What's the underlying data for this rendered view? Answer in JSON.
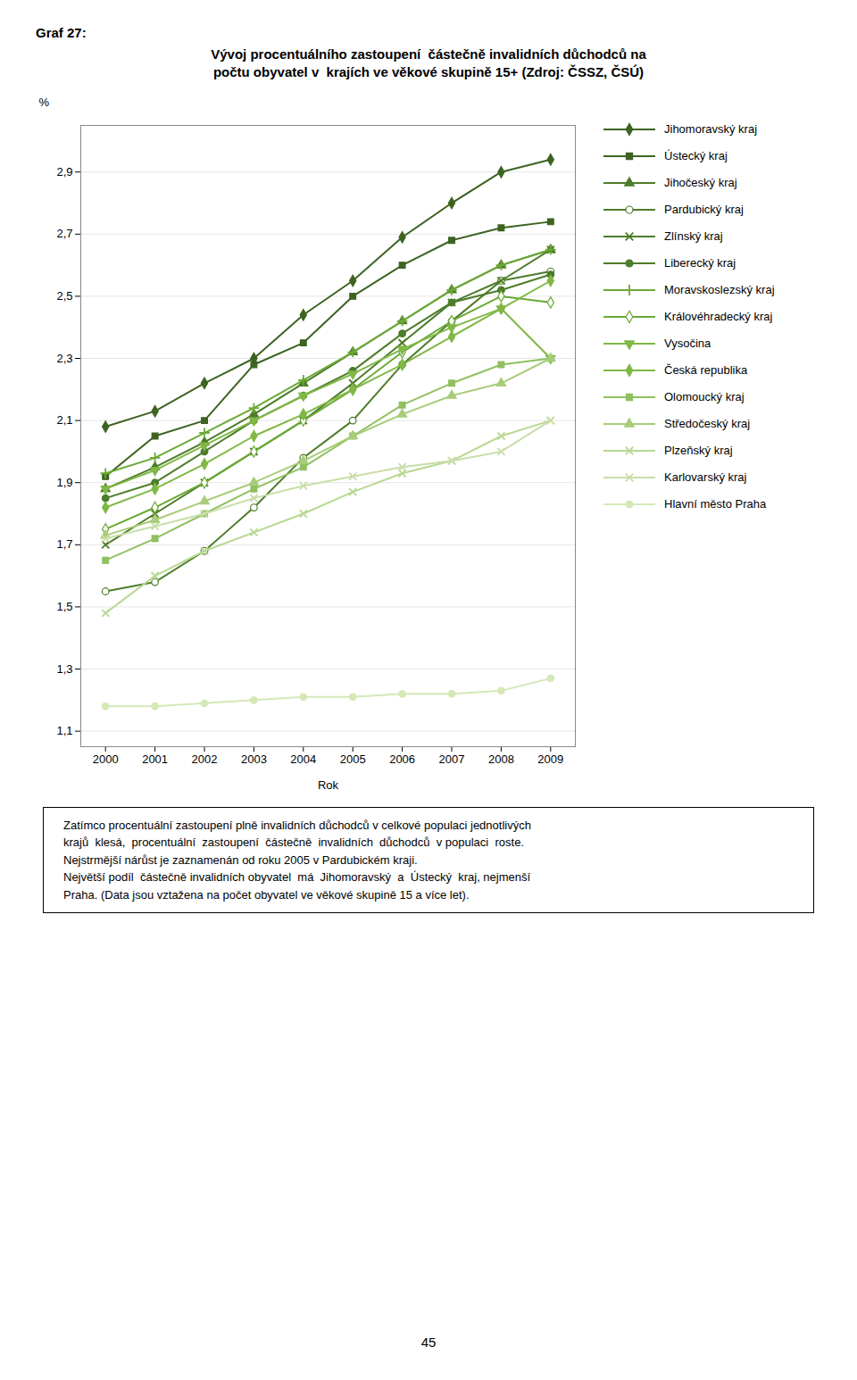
{
  "chart_data": {
    "type": "line",
    "title": "Vývoj procentuálního zastoupení  částečně invalidních důchodců na\npočtu obyvatel v  krajích ve věkové skupině 15+ (Zdroj: ČSSZ, ČSÚ)",
    "annotations": [
      "Graf 27:",
      "Zatímco procentuální zastoupení plně invalidních důchodců v celkové populaci jednotlivých\nkrajů  klesá,  procentuální  zastoupení  částečně  invalidních  důchodců  v populaci  roste.\nNejstrmější nárůst je zaznamenán od roku 2005 v Pardubickém kraji.\nNejvětší podíl  částečně invalidních obyvatel  má  Jihomoravský  a  Ústecký  kraj, nejmenší\nPraha. (Data jsou vztažena na počet obyvatel ve věkové skupině 15 a více let).",
      "45"
    ],
    "xlabel": "Rok",
    "ylabel": "%",
    "x": [
      2000,
      2001,
      2002,
      2003,
      2004,
      2005,
      2006,
      2007,
      2008,
      2009
    ],
    "xlim": [
      1999.5,
      2009.5
    ],
    "xticks": [
      2000,
      2001,
      2002,
      2003,
      2004,
      2005,
      2006,
      2007,
      2008,
      2009
    ],
    "ylim": [
      1.05,
      3.05
    ],
    "yticks": [
      {
        "value": 1.1,
        "label": "1,1"
      },
      {
        "value": 1.3,
        "label": "1,3"
      },
      {
        "value": 1.5,
        "label": "1,5"
      },
      {
        "value": 1.7,
        "label": "1,7"
      },
      {
        "value": 1.9,
        "label": "1,9"
      },
      {
        "value": 2.1,
        "label": "2,1"
      },
      {
        "value": 2.3,
        "label": "2,3"
      },
      {
        "value": 2.5,
        "label": "2,5"
      },
      {
        "value": 2.7,
        "label": "2,7"
      },
      {
        "value": 2.9,
        "label": "2,9"
      }
    ],
    "grid": true,
    "legend": "right",
    "series": [
      {
        "name": "Jihomoravský kraj",
        "color": "#3d6321",
        "marker": "diamond",
        "values": [
          2.08,
          2.13,
          2.22,
          2.3,
          2.44,
          2.55,
          2.69,
          2.8,
          2.9,
          2.94
        ]
      },
      {
        "name": "Ústecký kraj",
        "color": "#3d6321",
        "marker": "square",
        "values": [
          1.92,
          2.05,
          2.1,
          2.28,
          2.35,
          2.5,
          2.6,
          2.68,
          2.72,
          2.74
        ]
      },
      {
        "name": "Jihočeský kraj",
        "color": "#4d7c2a",
        "marker": "triangle",
        "values": [
          1.88,
          1.95,
          2.03,
          2.12,
          2.22,
          2.32,
          2.42,
          2.52,
          2.6,
          2.65
        ]
      },
      {
        "name": "Pardubický kraj",
        "color": "#4d7c2a",
        "marker": "circle-open",
        "values": [
          1.55,
          1.58,
          1.68,
          1.82,
          1.98,
          2.1,
          2.28,
          2.42,
          2.55,
          2.58
        ]
      },
      {
        "name": "Zlínský kraj",
        "color": "#4d7c2a",
        "marker": "times",
        "values": [
          1.7,
          1.8,
          1.9,
          2.0,
          2.1,
          2.22,
          2.35,
          2.48,
          2.55,
          2.65
        ]
      },
      {
        "name": "Liberecký kraj",
        "color": "#4d7c2a",
        "marker": "circle",
        "values": [
          1.85,
          1.9,
          2.0,
          2.1,
          2.18,
          2.26,
          2.38,
          2.48,
          2.52,
          2.57
        ]
      },
      {
        "name": "Moravskoslezský kraj",
        "color": "#6aaa35",
        "marker": "plus",
        "values": [
          1.93,
          1.98,
          2.06,
          2.14,
          2.23,
          2.32,
          2.42,
          2.52,
          2.6,
          2.65
        ]
      },
      {
        "name": "Královéhradecký kraj",
        "color": "#6aaa35",
        "marker": "diamond-open",
        "values": [
          1.75,
          1.82,
          1.9,
          2.0,
          2.1,
          2.2,
          2.32,
          2.42,
          2.5,
          2.48
        ]
      },
      {
        "name": "Vysočina",
        "color": "#80b845",
        "marker": "triangle-down",
        "values": [
          1.88,
          1.94,
          2.02,
          2.1,
          2.18,
          2.25,
          2.33,
          2.4,
          2.46,
          2.3
        ]
      },
      {
        "name": "Česká republika",
        "color": "#80b845",
        "marker": "diamond",
        "values": [
          1.82,
          1.88,
          1.96,
          2.05,
          2.12,
          2.2,
          2.28,
          2.37,
          2.46,
          2.55
        ]
      },
      {
        "name": "Olomoucký kraj",
        "color": "#90c060",
        "marker": "square",
        "values": [
          1.65,
          1.72,
          1.8,
          1.88,
          1.95,
          2.05,
          2.15,
          2.22,
          2.28,
          2.3
        ]
      },
      {
        "name": "Středočeský kraj",
        "color": "#a8cc7a",
        "marker": "triangle",
        "values": [
          1.73,
          1.78,
          1.84,
          1.9,
          1.97,
          2.05,
          2.12,
          2.18,
          2.22,
          2.3
        ]
      },
      {
        "name": "Plzeňský kraj",
        "color": "#b8d892",
        "marker": "times",
        "values": [
          1.48,
          1.6,
          1.68,
          1.74,
          1.8,
          1.87,
          1.93,
          1.97,
          2.05,
          2.1
        ]
      },
      {
        "name": "Karlovarský kraj",
        "color": "#c8dea8",
        "marker": "times",
        "values": [
          1.72,
          1.76,
          1.8,
          1.85,
          1.89,
          1.92,
          1.95,
          1.97,
          2.0,
          2.1
        ]
      },
      {
        "name": "Hlavní město Praha",
        "color": "#d5e8b8",
        "marker": "circle",
        "values": [
          1.18,
          1.18,
          1.19,
          1.2,
          1.21,
          1.21,
          1.22,
          1.22,
          1.23,
          1.27
        ]
      }
    ]
  }
}
